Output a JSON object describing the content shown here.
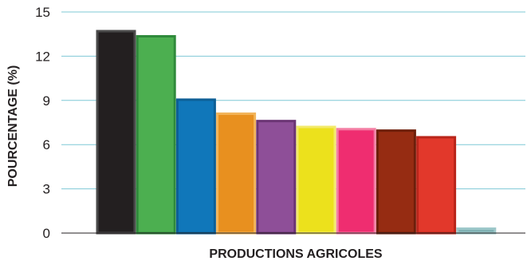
{
  "chart_data": {
    "type": "bar",
    "title": "",
    "xlabel": "PRODUCTIONS AGRICOLES",
    "ylabel": "POURCENTAGE (%)",
    "ylim": [
      0,
      15
    ],
    "yticks": [
      "0",
      "3",
      "6",
      "9",
      "12",
      "15"
    ],
    "grid": true,
    "grid_color": "#7fc8d6",
    "values": [
      13.7,
      13.35,
      9.05,
      8.1,
      7.6,
      7.2,
      7.05,
      6.95,
      6.5,
      0.3
    ],
    "colors": [
      "#231f20",
      "#4caf50",
      "#1077ba",
      "#e8901f",
      "#8e4f98",
      "#ece11c",
      "#ef2d70",
      "#962c12",
      "#e2382b",
      "#7fb1b3"
    ],
    "edge_colors": [
      "#4a4a4a",
      "#2f8a3b",
      "#0d5f96",
      "#f2b45a",
      "#6b3474",
      "#f3ea6a",
      "#f47ea4",
      "#6e1e0a",
      "#b9251a",
      "#9ec8ca"
    ]
  }
}
